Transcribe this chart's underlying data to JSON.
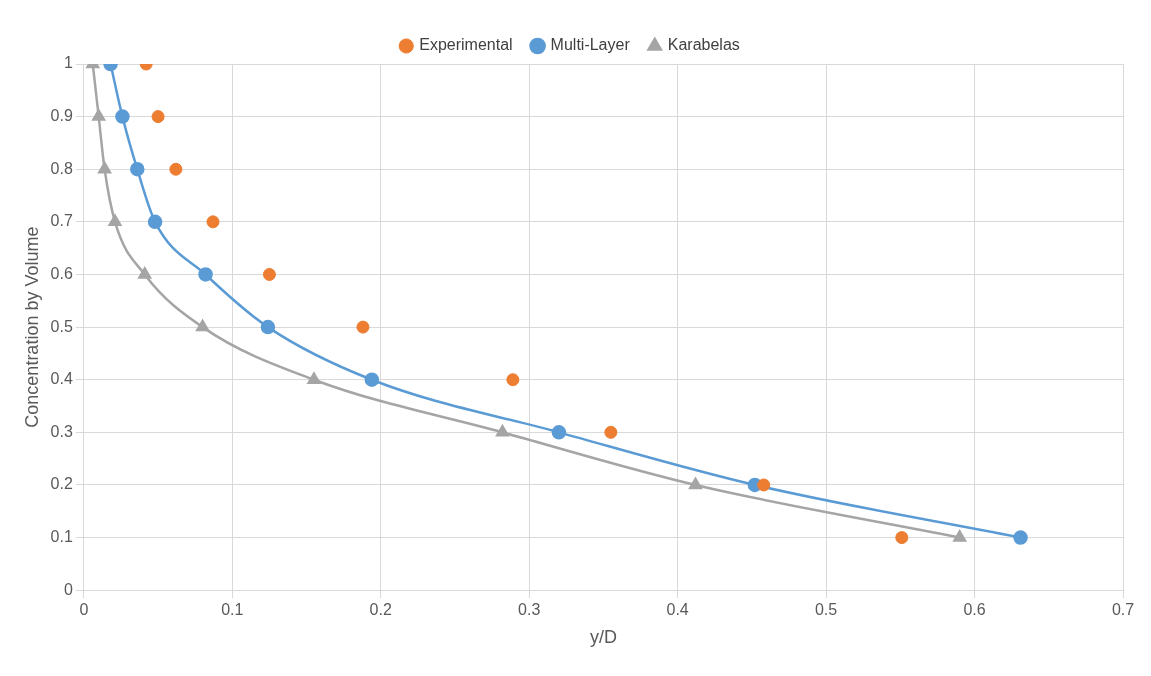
{
  "chart_data": {
    "type": "line",
    "xlabel": "y/D",
    "ylabel": "Concentration by Volume",
    "xlim": [
      0,
      0.7
    ],
    "xticks": [
      0,
      0.1,
      0.2,
      0.3,
      0.4,
      0.5,
      0.6,
      0.7
    ],
    "ylim": [
      0,
      1
    ],
    "yticks": [
      0,
      0.1,
      0.2,
      0.3,
      0.4,
      0.5,
      0.6,
      0.7,
      0.8,
      0.9,
      1
    ],
    "grid": true,
    "legend": "top",
    "series": [
      {
        "name": "Experimental",
        "type": "scatter",
        "marker": "circle",
        "color": "#ed7d31",
        "x": [
          0.042,
          0.05,
          0.062,
          0.087,
          0.125,
          0.188,
          0.289,
          0.355,
          0.458,
          0.551
        ],
        "values": [
          1,
          0.9,
          0.8,
          0.7,
          0.6,
          0.5,
          0.4,
          0.3,
          0.2,
          0.1
        ]
      },
      {
        "name": "Multi-Layer",
        "type": "line",
        "marker": "circle",
        "color": "#5b9bd5",
        "x": [
          0.018,
          0.026,
          0.036,
          0.048,
          0.082,
          0.124,
          0.194,
          0.32,
          0.452,
          0.631
        ],
        "values": [
          1,
          0.9,
          0.8,
          0.7,
          0.6,
          0.5,
          0.4,
          0.3,
          0.2,
          0.1
        ]
      },
      {
        "name": "Karabelas",
        "type": "line",
        "marker": "triangle",
        "color": "#a5a5a5",
        "x": [
          0.006,
          0.01,
          0.014,
          0.021,
          0.041,
          0.08,
          0.155,
          0.282,
          0.412,
          0.59
        ],
        "values": [
          1,
          0.9,
          0.8,
          0.7,
          0.6,
          0.5,
          0.4,
          0.3,
          0.2,
          0.1
        ]
      }
    ]
  }
}
